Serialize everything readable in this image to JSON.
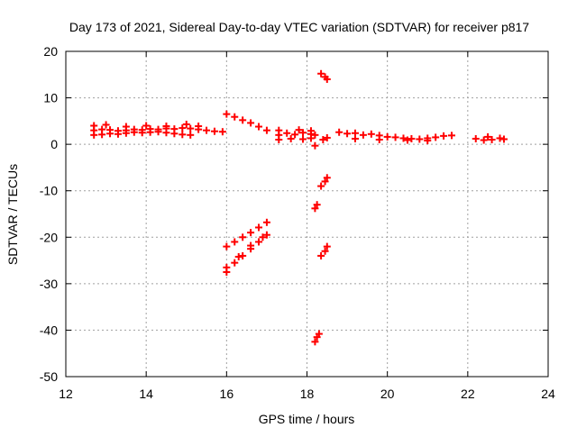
{
  "chart_data": {
    "type": "scatter",
    "title": "Day 173 of 2021, Sidereal Day-to-day VTEC variation (SDTVAR) for receiver p817",
    "xlabel": "GPS time / hours",
    "ylabel": "SDTVAR / TECUs",
    "xlim": [
      12,
      24
    ],
    "ylim": [
      -50,
      20
    ],
    "xticks": [
      12,
      14,
      16,
      18,
      20,
      22,
      24
    ],
    "yticks": [
      -50,
      -40,
      -30,
      -20,
      -10,
      0,
      10,
      20
    ],
    "grid": true,
    "marker": "plus",
    "color": "#ff0000",
    "series": [
      {
        "points": [
          [
            12.7,
            3.0
          ],
          [
            12.9,
            3.2
          ],
          [
            13.1,
            3.1
          ],
          [
            13.3,
            2.9
          ],
          [
            13.5,
            3.0
          ],
          [
            13.7,
            3.2
          ],
          [
            13.9,
            3.1
          ],
          [
            14.1,
            3.3
          ],
          [
            14.3,
            3.2
          ],
          [
            14.5,
            3.4
          ],
          [
            14.7,
            3.3
          ],
          [
            14.9,
            3.5
          ],
          [
            15.1,
            3.4
          ],
          [
            15.3,
            3.2
          ],
          [
            15.5,
            3.0
          ],
          [
            15.7,
            2.8
          ],
          [
            15.9,
            2.7
          ],
          [
            12.7,
            2.0
          ],
          [
            12.9,
            2.1
          ],
          [
            13.1,
            2.3
          ],
          [
            13.3,
            2.2
          ],
          [
            13.5,
            2.4
          ],
          [
            13.7,
            2.6
          ],
          [
            13.9,
            2.5
          ],
          [
            14.1,
            2.6
          ],
          [
            14.3,
            2.7
          ],
          [
            14.5,
            2.5
          ],
          [
            14.7,
            2.3
          ],
          [
            14.9,
            2.1
          ],
          [
            15.1,
            2.0
          ],
          [
            12.7,
            4.0
          ],
          [
            13.0,
            4.2
          ],
          [
            13.5,
            3.8
          ],
          [
            14.0,
            4.0
          ],
          [
            14.5,
            3.9
          ],
          [
            15.0,
            4.3
          ],
          [
            15.3,
            3.9
          ],
          [
            16.0,
            6.5
          ],
          [
            16.2,
            5.9
          ],
          [
            16.4,
            5.2
          ],
          [
            16.6,
            4.6
          ],
          [
            16.8,
            3.8
          ],
          [
            17.0,
            3.0
          ],
          [
            17.3,
            2.0
          ],
          [
            17.5,
            2.4
          ],
          [
            17.7,
            2.1
          ],
          [
            17.9,
            2.5
          ],
          [
            18.1,
            2.2
          ],
          [
            18.2,
            2.0
          ],
          [
            17.3,
            1.0
          ],
          [
            17.6,
            1.2
          ],
          [
            17.9,
            1.1
          ],
          [
            18.1,
            1.3
          ],
          [
            17.3,
            3.0
          ],
          [
            17.8,
            3.1
          ],
          [
            18.1,
            2.9
          ],
          [
            18.2,
            -0.3
          ],
          [
            18.4,
            1.0
          ],
          [
            18.5,
            1.4
          ],
          [
            18.8,
            2.6
          ],
          [
            19.0,
            2.3
          ],
          [
            19.2,
            2.4
          ],
          [
            19.4,
            2.0
          ],
          [
            19.6,
            2.2
          ],
          [
            19.8,
            1.9
          ],
          [
            20.0,
            1.6
          ],
          [
            20.2,
            1.5
          ],
          [
            20.4,
            1.3
          ],
          [
            20.6,
            1.2
          ],
          [
            20.8,
            1.1
          ],
          [
            21.0,
            1.3
          ],
          [
            21.2,
            1.5
          ],
          [
            21.4,
            1.8
          ],
          [
            21.6,
            1.9
          ],
          [
            19.2,
            1.2
          ],
          [
            19.8,
            1.0
          ],
          [
            20.5,
            0.9
          ],
          [
            21.0,
            0.8
          ],
          [
            22.2,
            1.2
          ],
          [
            22.4,
            0.9
          ],
          [
            22.6,
            1.0
          ],
          [
            22.8,
            1.3
          ],
          [
            22.9,
            1.1
          ],
          [
            22.5,
            1.6
          ],
          [
            16.0,
            -22.0
          ],
          [
            16.2,
            -21.0
          ],
          [
            16.4,
            -20.0
          ],
          [
            16.6,
            -19.0
          ],
          [
            16.8,
            -17.9
          ],
          [
            17.0,
            -16.8
          ],
          [
            16.0,
            -27.5
          ],
          [
            16.2,
            -25.5
          ],
          [
            16.4,
            -24.0
          ],
          [
            16.6,
            -22.5
          ],
          [
            16.8,
            -21.0
          ],
          [
            17.0,
            -19.5
          ],
          [
            16.0,
            -26.5
          ],
          [
            16.3,
            -24.2
          ],
          [
            16.6,
            -21.8
          ],
          [
            16.9,
            -20.0
          ],
          [
            18.35,
            15.2
          ],
          [
            18.45,
            14.5
          ],
          [
            18.5,
            14.0
          ],
          [
            18.35,
            -9.0
          ],
          [
            18.45,
            -8.0
          ],
          [
            18.5,
            -7.2
          ],
          [
            18.2,
            -13.8
          ],
          [
            18.25,
            -13.0
          ],
          [
            18.35,
            -24.0
          ],
          [
            18.45,
            -23.0
          ],
          [
            18.5,
            -22.0
          ],
          [
            18.2,
            -42.5
          ],
          [
            18.25,
            -41.5
          ],
          [
            18.3,
            -40.8
          ]
        ]
      }
    ]
  }
}
